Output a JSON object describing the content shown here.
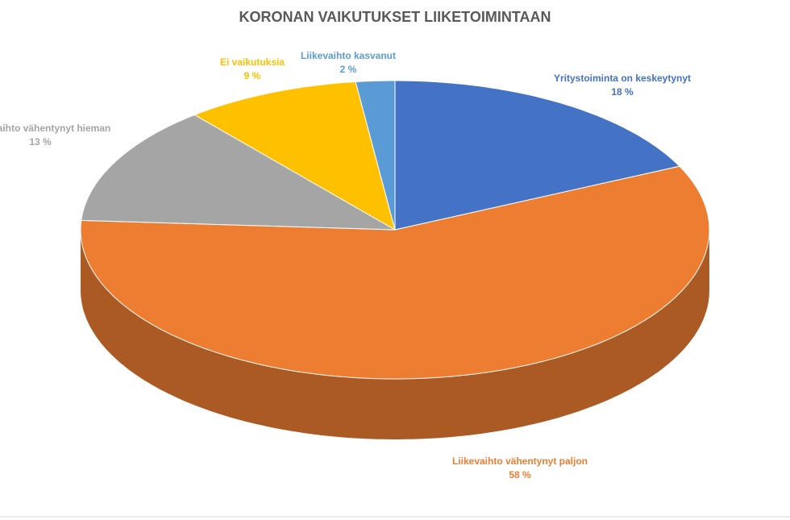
{
  "chart_data": {
    "type": "pie",
    "title": "KORONAN VAIKUTUKSET LIIKETOIMINTAAN",
    "categories": [
      "Yritystoiminta on keskeytynyt",
      "Liikevaihto vähentynyt paljon",
      "Liikevaihto vähentynyt hieman",
      "Ei vaikutuksia",
      "Liikevaihto kasvanut"
    ],
    "values": [
      18,
      58,
      13,
      9,
      2
    ],
    "value_labels": [
      "18 %",
      "58 %",
      "13 %",
      "9 %",
      "2 %"
    ],
    "colors": [
      "#4472c4",
      "#ed7d31",
      "#a5a5a5",
      "#ffc000",
      "#5b9bd5"
    ]
  }
}
